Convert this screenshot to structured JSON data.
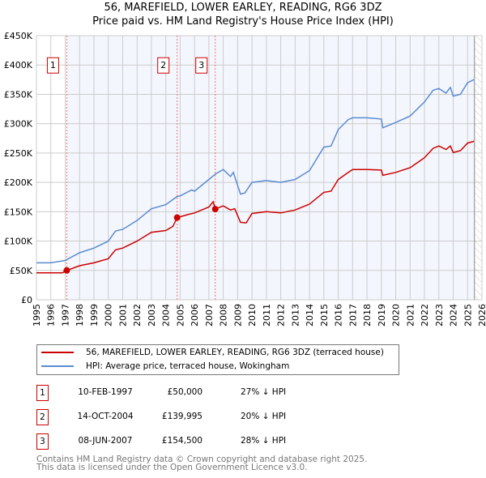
{
  "header": {
    "title_line1": "56, MAREFIELD, LOWER EARLEY, READING, RG6 3DZ",
    "title_line2": "Price paid vs. HM Land Registry's House Price Index (HPI)"
  },
  "chart_data": {
    "type": "line",
    "title": "56, MAREFIELD, LOWER EARLEY, READING, RG6 3DZ — Price paid vs. HM Land Registry's House Price Index (HPI)",
    "xlim": [
      1995,
      2026
    ],
    "ylim": [
      0,
      450000
    ],
    "x_ticks": [
      "1995",
      "1996",
      "1997",
      "1998",
      "1999",
      "2000",
      "2001",
      "2002",
      "2003",
      "2004",
      "2005",
      "2006",
      "2007",
      "2008",
      "2009",
      "2010",
      "2011",
      "2012",
      "2013",
      "2014",
      "2015",
      "2016",
      "2017",
      "2018",
      "2019",
      "2020",
      "2021",
      "2022",
      "2023",
      "2024",
      "2025",
      "2026"
    ],
    "y_ticks": [
      {
        "v": 0,
        "label": "£0"
      },
      {
        "v": 50000,
        "label": "£50K"
      },
      {
        "v": 100000,
        "label": "£100K"
      },
      {
        "v": 150000,
        "label": "£150K"
      },
      {
        "v": 200000,
        "label": "£200K"
      },
      {
        "v": 250000,
        "label": "£250K"
      },
      {
        "v": 300000,
        "label": "£300K"
      },
      {
        "v": 350000,
        "label": "£350K"
      },
      {
        "v": 400000,
        "label": "£400K"
      },
      {
        "v": 450000,
        "label": "£450K"
      }
    ],
    "grid": true,
    "data_end": 2025.48,
    "series": [
      {
        "name": "56, MAREFIELD, LOWER EARLEY, READING, RG6 3DZ (terraced house)",
        "color": "#cc0000",
        "x": [
          1995,
          1996.8,
          1997.11,
          1998,
          1999,
          2000,
          2000.5,
          2001,
          2002,
          2003,
          2004,
          2004.5,
          2004.79,
          2005.5,
          2006,
          2007,
          2007.3,
          2007.44,
          2008,
          2008.5,
          2008.8,
          2009.2,
          2009.6,
          2010,
          2011,
          2012,
          2013,
          2014,
          2015,
          2015.5,
          2016,
          2016.7,
          2017,
          2018,
          2019,
          2019.1,
          2020,
          2021,
          2022,
          2022.6,
          2023,
          2023.5,
          2023.8,
          2024,
          2024.5,
          2025,
          2025.45
        ],
        "y": [
          46000,
          46000,
          50000,
          58000,
          63000,
          70000,
          85000,
          88000,
          100000,
          115000,
          118000,
          125000,
          139995,
          145000,
          148000,
          158000,
          167000,
          154500,
          160000,
          153000,
          155000,
          132000,
          131000,
          147000,
          150000,
          148000,
          153000,
          163000,
          183000,
          185000,
          205000,
          217000,
          222000,
          222000,
          221000,
          212000,
          217000,
          225000,
          242000,
          258000,
          262000,
          256000,
          262000,
          251000,
          254000,
          267000,
          270000
        ]
      },
      {
        "name": "HPI: Average price, terraced house, Wokingham",
        "color": "#5b8bd0",
        "x": [
          1995,
          1996,
          1997,
          1998,
          1999,
          2000,
          2000.5,
          2001,
          2002,
          2003,
          2004,
          2004.79,
          2005,
          2005.8,
          2006,
          2007,
          2007.5,
          2008,
          2008.5,
          2008.7,
          2009.2,
          2009.5,
          2010,
          2011,
          2012,
          2013,
          2014,
          2015,
          2015.5,
          2016,
          2016.7,
          2017,
          2018,
          2019,
          2019.1,
          2020,
          2021,
          2022,
          2022.6,
          2023,
          2023.5,
          2023.8,
          2024,
          2024.5,
          2025,
          2025.45
        ],
        "y": [
          63000,
          63000,
          67000,
          80000,
          88000,
          100000,
          117000,
          120000,
          135000,
          155000,
          162000,
          176000,
          177000,
          187000,
          185000,
          205000,
          215000,
          222000,
          210000,
          217000,
          180000,
          182000,
          200000,
          203000,
          200000,
          205000,
          220000,
          260000,
          262000,
          290000,
          307000,
          310000,
          310000,
          308000,
          293000,
          302000,
          313000,
          337000,
          357000,
          360000,
          352000,
          362000,
          347000,
          350000,
          370000,
          375000
        ]
      }
    ],
    "sales": [
      {
        "label": "1",
        "x": 1997.11,
        "price": 50000,
        "date": "10-FEB-1997",
        "price_text": "£50,000",
        "hpi_text": "27% ↓ HPI"
      },
      {
        "label": "2",
        "x": 2004.79,
        "price": 139995,
        "date": "14-OCT-2004",
        "price_text": "£139,995",
        "hpi_text": "20% ↓ HPI"
      },
      {
        "label": "3",
        "x": 2007.44,
        "price": 154500,
        "date": "08-JUN-2007",
        "price_text": "£154,500",
        "hpi_text": "28% ↓ HPI"
      }
    ],
    "legend_position": "below"
  },
  "footer": {
    "line1": "Contains HM Land Registry data © Crown copyright and database right 2025.",
    "line2": "This data is licensed under the Open Government Licence v3.0."
  }
}
